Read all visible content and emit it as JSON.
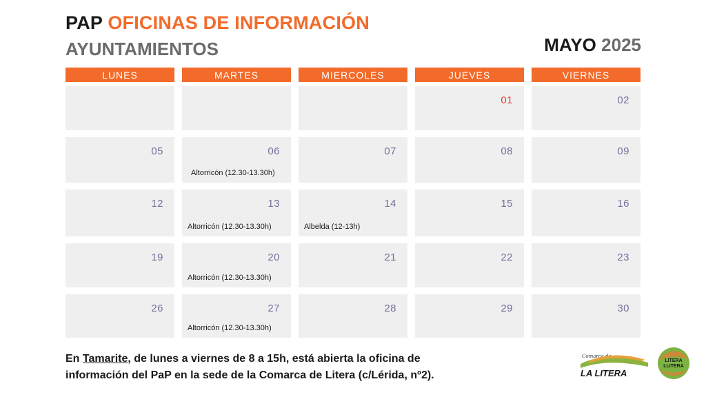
{
  "header": {
    "title_prefix": "PAP",
    "title_accent": "OFICINAS DE INFORMACIÓN",
    "subtitle": "AYUNTAMIENTOS",
    "month": "MAYO",
    "year": "2025"
  },
  "colors": {
    "accent": "#f26b2a",
    "cell_bg": "#efeff0",
    "day_number": "#7a6f9a",
    "holiday": "#e0423a"
  },
  "calendar": {
    "days": [
      "LUNES",
      "MARTES",
      "MIERCOLES",
      "JUEVES",
      "VIERNES"
    ],
    "weeks": [
      [
        {
          "day": "",
          "event": ""
        },
        {
          "day": "",
          "event": ""
        },
        {
          "day": "",
          "event": ""
        },
        {
          "day": "01",
          "event": "",
          "holiday": true
        },
        {
          "day": "02",
          "event": ""
        }
      ],
      [
        {
          "day": "05",
          "event": ""
        },
        {
          "day": "06",
          "event": "Altorricón (12.30-13.30h)"
        },
        {
          "day": "07",
          "event": ""
        },
        {
          "day": "08",
          "event": ""
        },
        {
          "day": "09",
          "event": ""
        }
      ],
      [
        {
          "day": "12",
          "event": ""
        },
        {
          "day": "13",
          "event": "Altorricón (12.30-13.30h)"
        },
        {
          "day": "14",
          "event": "Albelda (12-13h)"
        },
        {
          "day": "15",
          "event": ""
        },
        {
          "day": "16",
          "event": ""
        }
      ],
      [
        {
          "day": "19",
          "event": ""
        },
        {
          "day": "20",
          "event": "Altorricón (12.30-13.30h)"
        },
        {
          "day": "21",
          "event": ""
        },
        {
          "day": "22",
          "event": ""
        },
        {
          "day": "23",
          "event": ""
        }
      ],
      [
        {
          "day": "26",
          "event": ""
        },
        {
          "day": "27",
          "event": "Altorricón (12.30-13.30h)"
        },
        {
          "day": "28",
          "event": ""
        },
        {
          "day": "29",
          "event": ""
        },
        {
          "day": "30",
          "event": ""
        }
      ]
    ]
  },
  "footer": {
    "line1_pre": "En ",
    "line1_place": "Tamarite",
    "line1_post": ", de lunes a viernes de 8 a 15h, está abierta la oficina de",
    "line2": "información del PaP en la sede de la Comarca de Litera (c/Lérida, nº2)."
  },
  "logos": {
    "comarca_small": "Comarca de",
    "comarca_main": "LA LITERA",
    "partner_line1": "LITERA",
    "partner_line2": "LLITERA"
  }
}
